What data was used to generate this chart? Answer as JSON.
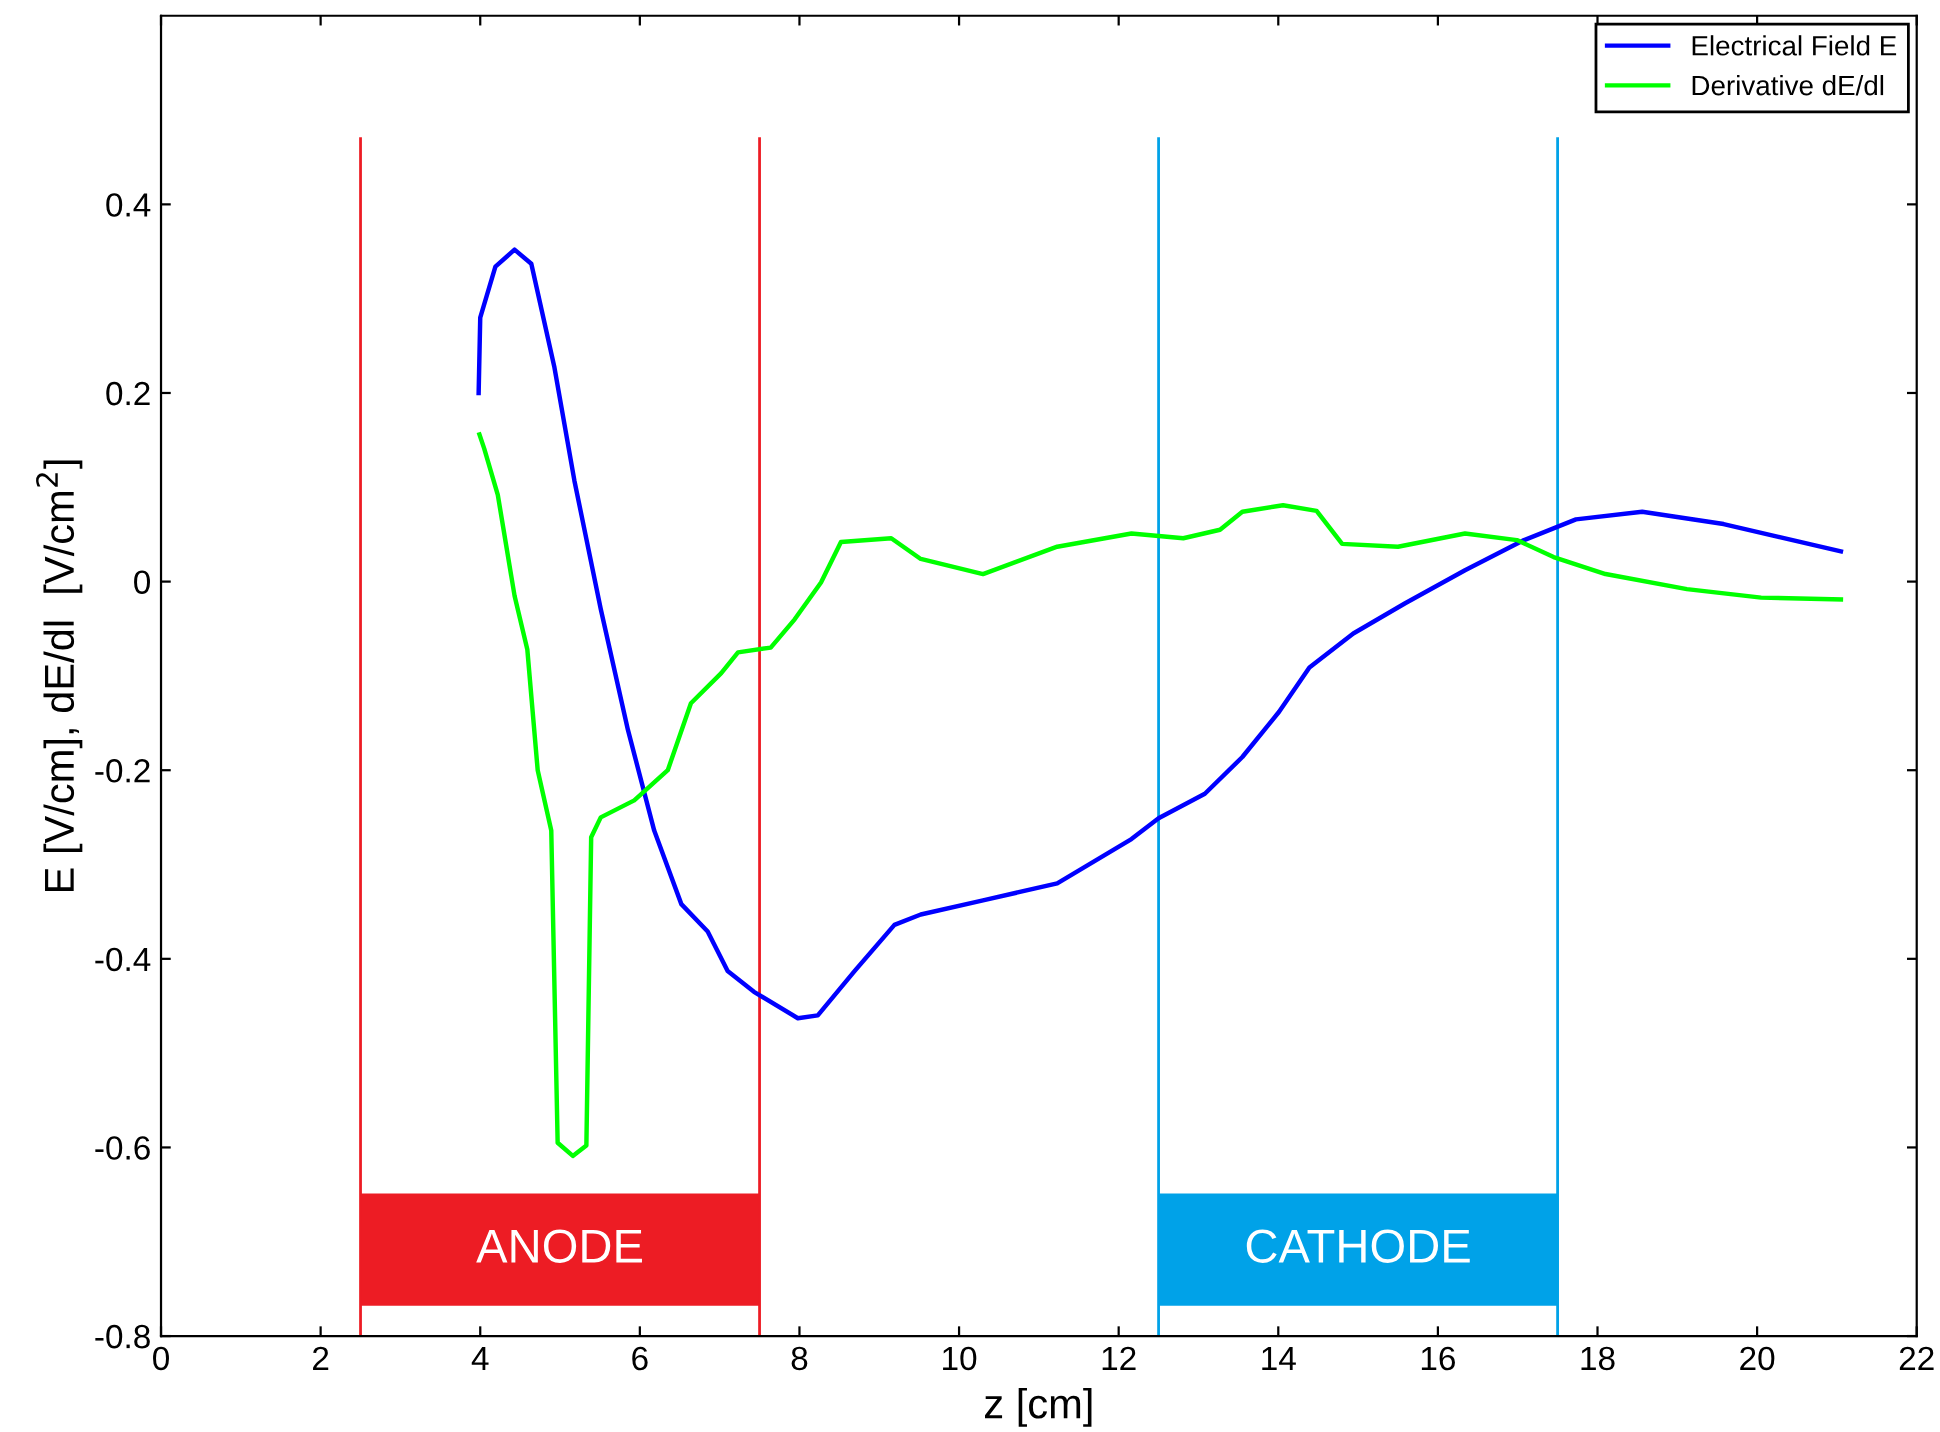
{
  "chart_data": {
    "type": "line",
    "xlabel": "z [cm]",
    "ylabel": "E [V/cm], dE/dl  [V/cm$^{2}$]",
    "xlim": [
      0,
      22
    ],
    "xticks": [
      0,
      2,
      4,
      6,
      8,
      10,
      12,
      14,
      16,
      18,
      20,
      22
    ],
    "ylim": [
      -0.8,
      0.6
    ],
    "ref_lines": [
      {
        "axis": "x",
        "value": 2.5,
        "color": "#ed1c24"
      },
      {
        "axis": "x",
        "value": 7.5,
        "color": "#ed1c24"
      },
      {
        "axis": "x",
        "value": 12.5,
        "color": "#00a2e8"
      },
      {
        "axis": "x",
        "value": 17.5,
        "color": "#00a2e8"
      }
    ],
    "yticks": [
      -0.8,
      -0.6,
      -0.4,
      -0.2,
      0,
      0.2,
      0.4
    ],
    "grid": false,
    "legend": "top right",
    "bands": [
      {
        "axis": "x",
        "from": 2.5,
        "to": 7.5,
        "label": "ANODE",
        "color": "#ed1c24"
      },
      {
        "axis": "x",
        "from": 12.5,
        "to": 17.5,
        "label": "CATHODE",
        "color": "#00a2e8"
      }
    ],
    "series": [
      {
        "name": "Electrical Field E",
        "color": "#0000ff",
        "x": [
          3.98,
          4.0,
          4.19,
          4.43,
          4.64,
          4.93,
          5.18,
          5.51,
          5.85,
          6.18,
          6.52,
          6.85,
          7.1,
          7.43,
          7.98,
          8.23,
          8.69,
          9.19,
          9.52,
          10.3,
          11.23,
          12.16,
          12.5,
          13.08,
          13.55,
          14.01,
          14.39,
          14.94,
          15.59,
          16.34,
          17.08,
          17.73,
          18.56,
          19.58,
          21.05
        ],
        "values": [
          0.2,
          0.28,
          0.334,
          0.352,
          0.337,
          0.227,
          0.107,
          -0.029,
          -0.157,
          -0.264,
          -0.342,
          -0.371,
          -0.413,
          -0.435,
          -0.463,
          -0.46,
          -0.413,
          -0.364,
          -0.353,
          -0.338,
          -0.32,
          -0.273,
          -0.251,
          -0.225,
          -0.186,
          -0.138,
          -0.091,
          -0.055,
          -0.023,
          0.012,
          0.044,
          0.066,
          0.074,
          0.061,
          0.032
        ]
      },
      {
        "name": "Derivative dE/dl",
        "color": "#00ff00",
        "x": [
          3.99,
          4.05,
          4.22,
          4.43,
          4.59,
          4.72,
          4.89,
          4.97,
          5.16,
          5.33,
          5.39,
          5.51,
          5.93,
          6.35,
          6.64,
          7.02,
          7.23,
          7.64,
          7.94,
          8.27,
          8.52,
          9.15,
          9.52,
          10.3,
          11.23,
          12.16,
          12.81,
          13.27,
          13.55,
          14.06,
          14.48,
          14.8,
          15.5,
          16.34,
          16.99,
          17.45,
          18.1,
          19.12,
          20.05,
          21.05
        ],
        "values": [
          0.156,
          0.141,
          0.092,
          -0.015,
          -0.072,
          -0.2,
          -0.264,
          -0.595,
          -0.609,
          -0.598,
          -0.271,
          -0.25,
          -0.232,
          -0.2,
          -0.129,
          -0.097,
          -0.075,
          -0.07,
          -0.04,
          -0.001,
          0.042,
          0.046,
          0.024,
          0.008,
          0.037,
          0.051,
          0.046,
          0.055,
          0.074,
          0.081,
          0.075,
          0.04,
          0.037,
          0.051,
          0.044,
          0.026,
          0.008,
          -0.008,
          -0.017,
          -0.019
        ]
      }
    ]
  }
}
